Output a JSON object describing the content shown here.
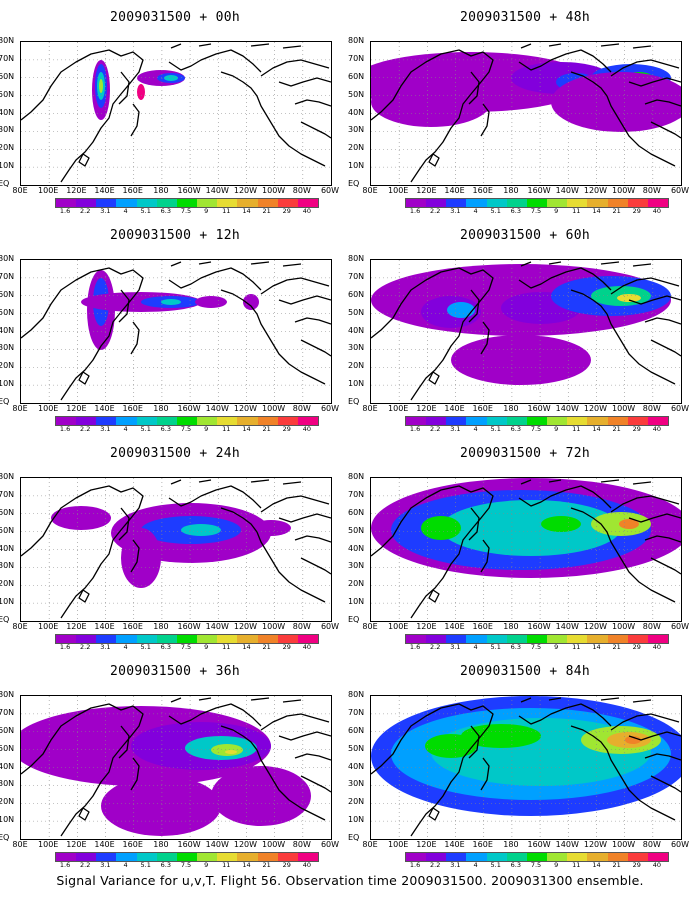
{
  "panels": [
    {
      "title": "2009031500 + 00h"
    },
    {
      "title": "2009031500 + 48h"
    },
    {
      "title": "2009031500 + 12h"
    },
    {
      "title": "2009031500 + 60h"
    },
    {
      "title": "2009031500 + 24h"
    },
    {
      "title": "2009031500 + 72h"
    },
    {
      "title": "2009031500 + 36h"
    },
    {
      "title": "2009031500 + 84h"
    }
  ],
  "axes": {
    "lat_labels": [
      "80N",
      "70N",
      "60N",
      "50N",
      "40N",
      "30N",
      "20N",
      "10N",
      "EQ"
    ],
    "lon_labels": [
      "80E",
      "100E",
      "120E",
      "140E",
      "160E",
      "180",
      "160W",
      "140W",
      "120W",
      "100W",
      "80W",
      "60W"
    ]
  },
  "colorbar": {
    "labels": [
      "1.6",
      "2.2",
      "3.1",
      "4",
      "5.1",
      "6.3",
      "7.5",
      "9",
      "11",
      "14",
      "21",
      "29",
      "40"
    ],
    "colors": [
      "#a000c8",
      "#8200dc",
      "#1e3cff",
      "#00a0ff",
      "#00c8c8",
      "#00d28c",
      "#00dc00",
      "#a0e632",
      "#e6dc32",
      "#e6af2d",
      "#f08228",
      "#fa3c3c",
      "#f00082"
    ]
  },
  "caption": "Signal Variance for u,v,T. Flight 56. Observation time 2009031500. 2009031300 ensemble."
}
